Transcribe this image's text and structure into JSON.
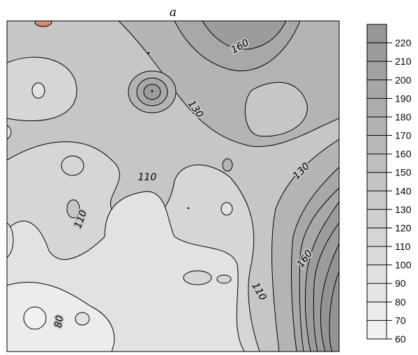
{
  "chart_data": {
    "type": "heatmap",
    "title": "a",
    "xlabel": "",
    "ylabel": "",
    "colorbar": {
      "levels": [
        60,
        70,
        80,
        90,
        100,
        110,
        120,
        130,
        140,
        150,
        160,
        170,
        180,
        190,
        200,
        210,
        220,
        230
      ],
      "tick_labels": [
        "60",
        "70",
        "80",
        "90",
        "100",
        "110",
        "120",
        "130",
        "140",
        "150",
        "160",
        "170",
        "180",
        "190",
        "200",
        "210",
        "220"
      ],
      "min_color": "#f1f1f1",
      "max_color": "#969696",
      "hot_color": "#d98c70"
    },
    "contour_labels": [
      {
        "text": "160",
        "angle": -30
      },
      {
        "text": "130",
        "angle": 55
      },
      {
        "text": "110",
        "angle": 0
      },
      {
        "text": "130",
        "angle": -45
      },
      {
        "text": "110",
        "angle": -70
      },
      {
        "text": "160",
        "angle": -55
      },
      {
        "text": "110",
        "angle": 60
      },
      {
        "text": "80",
        "angle": -80
      }
    ],
    "grid": false
  }
}
